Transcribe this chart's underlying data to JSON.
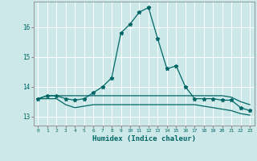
{
  "title": "",
  "xlabel": "Humidex (Indice chaleur)",
  "ylabel": "",
  "background_color": "#cde8e8",
  "line_color": "#006666",
  "grid_color": "#ffffff",
  "x_ticks": [
    0,
    1,
    2,
    3,
    4,
    5,
    6,
    7,
    8,
    9,
    10,
    11,
    12,
    13,
    14,
    15,
    16,
    17,
    18,
    19,
    20,
    21,
    22,
    23
  ],
  "x_tick_labels": [
    "0",
    "1",
    "2",
    "3",
    "4",
    "5",
    "6",
    "7",
    "8",
    "9",
    "10",
    "11",
    "12",
    "13",
    "14",
    "15",
    "16",
    "17",
    "18",
    "19",
    "20",
    "21",
    "22",
    "23"
  ],
  "y_ticks": [
    13,
    14,
    15,
    16
  ],
  "ylim": [
    12.7,
    16.85
  ],
  "xlim": [
    -0.5,
    23.5
  ],
  "main_line_x": [
    0,
    1,
    2,
    3,
    4,
    5,
    6,
    7,
    8,
    9,
    10,
    11,
    12,
    13,
    14,
    15,
    16,
    17,
    18,
    19,
    20,
    21,
    22,
    23
  ],
  "main_line_y": [
    13.6,
    13.7,
    13.7,
    13.6,
    13.55,
    13.6,
    13.8,
    14.0,
    14.3,
    15.8,
    16.1,
    16.5,
    16.65,
    15.6,
    14.6,
    14.7,
    14.0,
    13.6,
    13.6,
    13.6,
    13.55,
    13.55,
    13.3,
    13.2
  ],
  "flat_line1_x": [
    0,
    1,
    2,
    3,
    4,
    5,
    6,
    7,
    8,
    9,
    10,
    11,
    12,
    13,
    14,
    15,
    16,
    17,
    18,
    19,
    20,
    21,
    22,
    23
  ],
  "flat_line1_y": [
    13.6,
    13.7,
    13.7,
    13.7,
    13.7,
    13.7,
    13.7,
    13.7,
    13.7,
    13.7,
    13.7,
    13.7,
    13.7,
    13.7,
    13.7,
    13.7,
    13.7,
    13.7,
    13.7,
    13.7,
    13.7,
    13.65,
    13.5,
    13.4
  ],
  "flat_line2_x": [
    0,
    1,
    2,
    3,
    4,
    5,
    6,
    7,
    8,
    9,
    10,
    11,
    12,
    13,
    14,
    15,
    16,
    17,
    18,
    19,
    20,
    21,
    22,
    23
  ],
  "flat_line2_y": [
    13.6,
    13.6,
    13.6,
    13.4,
    13.3,
    13.35,
    13.4,
    13.4,
    13.4,
    13.4,
    13.4,
    13.4,
    13.4,
    13.4,
    13.4,
    13.4,
    13.4,
    13.4,
    13.35,
    13.3,
    13.25,
    13.2,
    13.1,
    13.05
  ]
}
